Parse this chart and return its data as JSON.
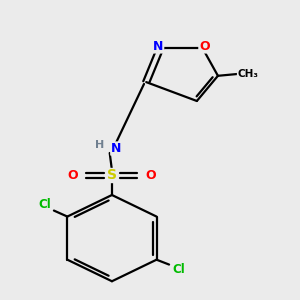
{
  "background_color": "#ebebeb",
  "atom_colors": {
    "C": "#000000",
    "N": "#0000ff",
    "O": "#ff0000",
    "S": "#cccc00",
    "Cl": "#00bb00",
    "H": "#708090"
  },
  "bond_color": "#000000",
  "bg": "#ebebeb"
}
